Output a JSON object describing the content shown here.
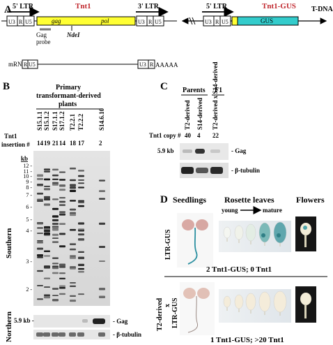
{
  "panelA": {
    "letter": "A",
    "ltr5": "5' LTR",
    "tnt1": "Tnt1",
    "ltr3": "3' LTR",
    "u3": "U3",
    "r": "R",
    "u5": "U5",
    "gag": "gag",
    "pol": "pol",
    "gag_probe": "Gag\nprobe",
    "gag_probe_l1": "Gag",
    "gag_probe_l2": "probe",
    "ndei": "NdeI",
    "mrna": "mRNA",
    "polyA": "AAAAA",
    "ltr5b": "5' LTR",
    "tnt1gus": "Tnt1-GUS",
    "gus": "GUS",
    "tdna": "T-DNA",
    "colors": {
      "tnt1_body": "#ffff33",
      "gus_body": "#33cccc",
      "title_red": "#c0272d"
    }
  },
  "panelB": {
    "letter": "B",
    "header_l1": "Primary",
    "header_l2": "transformant-derived",
    "header_l3": "plants",
    "lanes": [
      "S15.1.1",
      "S15.1.2",
      "S17.1.1",
      "S17.1.2",
      "T2.2.1",
      "T2.2.2",
      "S14.6.10"
    ],
    "insertion_label_l1": "Tnt1",
    "insertion_label_l2": "insertion #",
    "insertions": [
      "14",
      "19",
      "21",
      "14",
      "18",
      "17",
      "2"
    ],
    "kb_label": "kb",
    "kb_ticks": [
      "12 -",
      "11 -",
      "10 -",
      "9 -",
      "8 -",
      "7 -",
      "6 -",
      "5 -",
      "4 -",
      "3 -",
      "2 -"
    ],
    "southern": "Southern",
    "northern": "Northern",
    "northern_size": "5.9 kb -",
    "gag_label": "- Gag",
    "tubulin_label": "- β-tubulin"
  },
  "panelC": {
    "letter": "C",
    "parents": "Parents",
    "f1": "F1",
    "lanes": [
      "T2-derived",
      "S14-derived",
      "T2-derived x S14-derived"
    ],
    "copy_label": "Tnt1 copy #",
    "copies": [
      "40",
      "4",
      "22"
    ],
    "size": "5.9 kb",
    "gag_label": "- Gag",
    "tubulin_label": "- β-tubulin"
  },
  "panelD": {
    "letter": "D",
    "col_seedlings": "Seedlings",
    "col_rosette": "Rosette leaves",
    "col_flowers": "Flowers",
    "young": "young",
    "mature": "mature",
    "row1_label": "LTR-GUS",
    "row1_caption": "2 Tnt1-GUS; 0 Tnt1",
    "row2_label_l1": "T2-derived",
    "row2_label_l2": "x",
    "row2_label_l3": "LTR-GUS",
    "row2_caption": "1 Tnt1-GUS; >20 Tnt1"
  }
}
